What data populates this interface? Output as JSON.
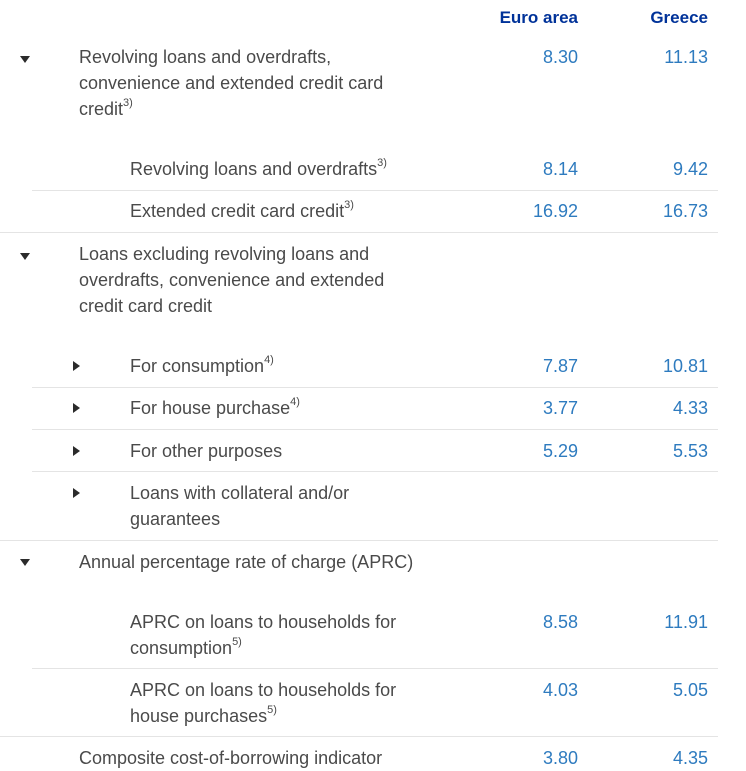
{
  "columns": {
    "euro_area": "Euro area",
    "greece": "Greece"
  },
  "sections": [
    {
      "label": "Revolving loans and overdrafts, convenience and extended credit card credit",
      "label_l1": "Revolving loans and overdrafts,",
      "label_l2": "convenience and extended credit card",
      "label_l3": "credit",
      "note": "3)",
      "euro_area": "8.30",
      "greece": "11.13",
      "toggle_icon": "caret-down-icon",
      "rows": [
        {
          "label": "Revolving loans and overdrafts",
          "note": "3)",
          "euro_area": "8.14",
          "greece": "9.42"
        },
        {
          "label": "Extended credit card credit",
          "note": "3)",
          "euro_area": "16.92",
          "greece": "16.73"
        }
      ]
    },
    {
      "label_l1": "Loans excluding revolving loans and",
      "label_l2": "overdrafts, convenience and extended",
      "label_l3": "credit card credit",
      "toggle_icon": "caret-down-icon",
      "rows": [
        {
          "label": "For consumption",
          "note": "4)",
          "euro_area": "7.87",
          "greece": "10.81",
          "toggle_icon": "caret-right-icon"
        },
        {
          "label": "For house purchase",
          "note": "4)",
          "euro_area": "3.77",
          "greece": "4.33",
          "toggle_icon": "caret-right-icon"
        },
        {
          "label": "For other purposes",
          "euro_area": "5.29",
          "greece": "5.53",
          "toggle_icon": "caret-right-icon"
        },
        {
          "label_l1": "Loans with collateral and/or",
          "label_l2": "guarantees",
          "toggle_icon": "caret-right-icon"
        }
      ]
    },
    {
      "label": "Annual percentage rate of charge (APRC)",
      "toggle_icon": "caret-down-icon",
      "rows": [
        {
          "label_l1": "APRC on loans to households for",
          "label_l2": "consumption",
          "note": "5)",
          "euro_area": "8.58",
          "greece": "11.91"
        },
        {
          "label_l1": "APRC on loans to households for",
          "label_l2": "house purchases",
          "note": "5)",
          "euro_area": "4.03",
          "greece": "5.05"
        }
      ]
    },
    {
      "label": "Composite cost-of-borrowing indicator",
      "euro_area": "3.80",
      "greece": "4.35"
    }
  ]
}
